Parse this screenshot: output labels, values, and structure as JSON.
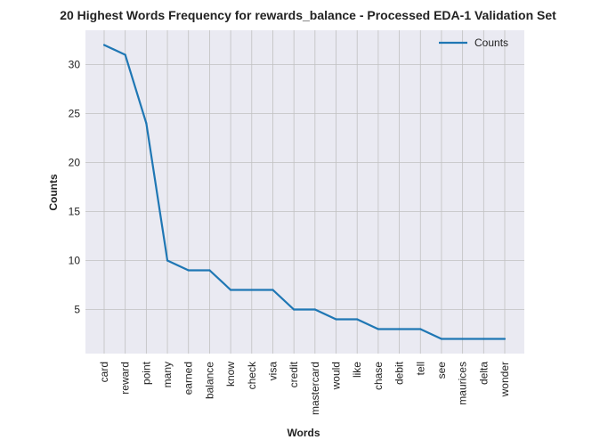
{
  "chart_data": {
    "type": "line",
    "title": "20 Highest Words Frequency for rewards_balance - Processed EDA-1 Validation Set",
    "xlabel": "Words",
    "ylabel": "Counts",
    "categories": [
      "card",
      "reward",
      "point",
      "many",
      "earned",
      "balance",
      "know",
      "check",
      "visa",
      "credit",
      "mastercard",
      "would",
      "like",
      "chase",
      "debit",
      "tell",
      "see",
      "maurices",
      "delta",
      "wonder"
    ],
    "series": [
      {
        "name": "Counts",
        "values": [
          32,
          31,
          24,
          10,
          9,
          9,
          7,
          7,
          7,
          5,
          5,
          4,
          4,
          3,
          3,
          3,
          2,
          2,
          2,
          2
        ],
        "color": "#1f77b4"
      }
    ],
    "ylim": [
      0.5,
      33.5
    ],
    "yticks": [
      5,
      10,
      15,
      20,
      25,
      30
    ],
    "grid": true,
    "legend_position": "top-right",
    "background": "#eaeaf2",
    "grid_color": "#c0c0c0"
  }
}
